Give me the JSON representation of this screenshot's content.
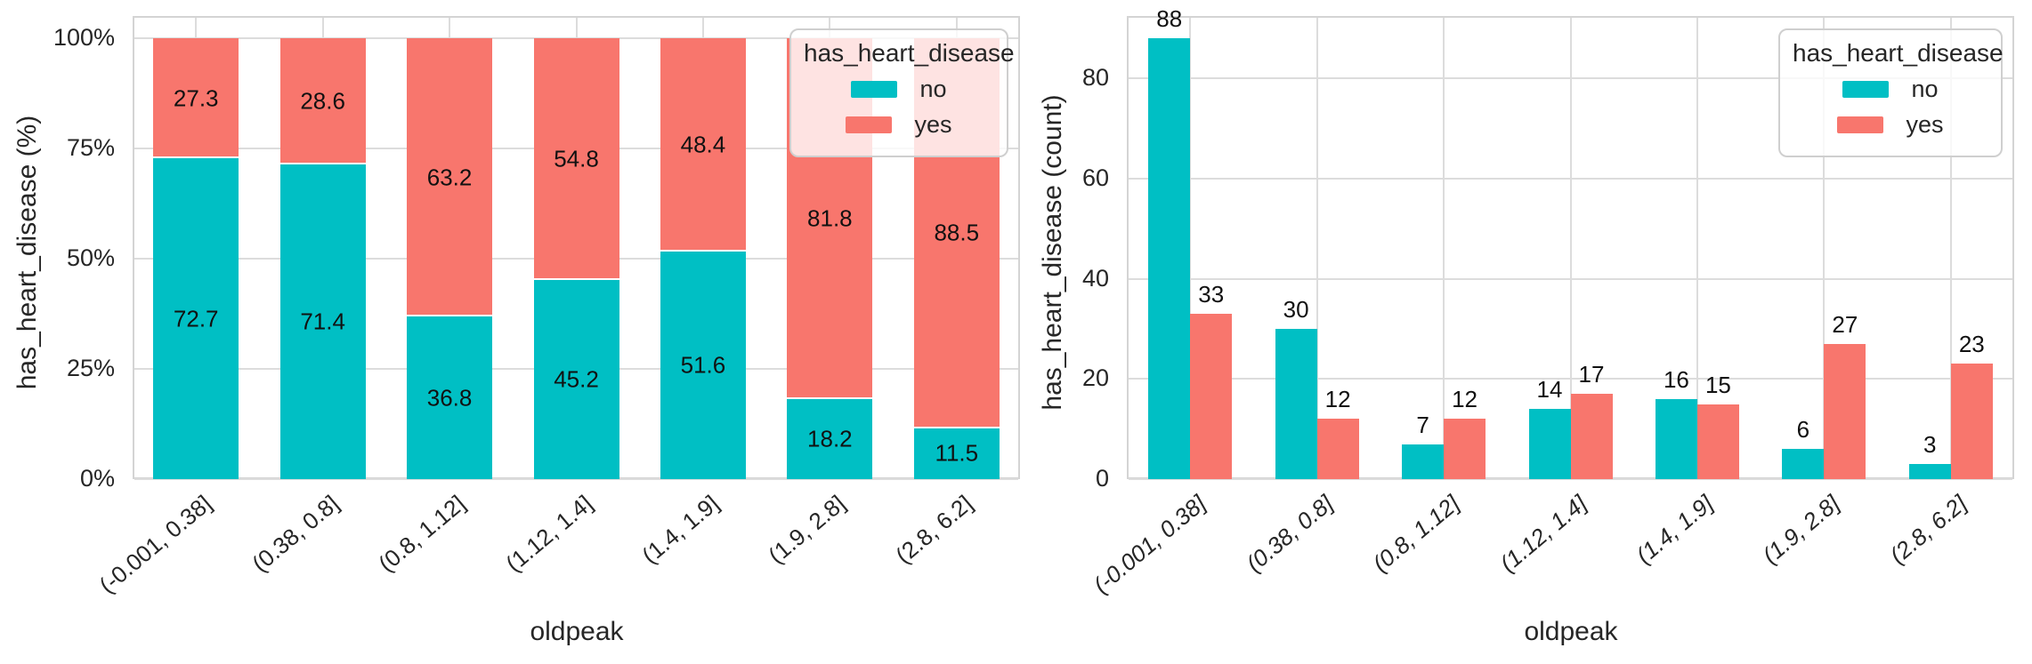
{
  "figure": {
    "background": "#ffffff",
    "text_color": "#262626",
    "grid_color": "#dcdcdc",
    "spine_color": "#d4d4d4",
    "series_colors": {
      "no": "#00BFC4",
      "yes": "#F8766D"
    }
  },
  "chart_data": [
    {
      "type": "bar",
      "variant": "stacked",
      "percent": true,
      "title": "",
      "xlabel": "oldpeak",
      "ylabel": "has_heart_disease (%)",
      "categories": [
        "(-0.001, 0.38]",
        "(0.38, 0.8]",
        "(0.8, 1.12]",
        "(1.12, 1.4]",
        "(1.4, 1.9]",
        "(1.9, 2.8]",
        "(2.8, 6.2]"
      ],
      "series": [
        {
          "name": "no",
          "color": "#00BFC4",
          "values": [
            72.7,
            71.4,
            36.8,
            45.2,
            51.6,
            18.2,
            11.5
          ]
        },
        {
          "name": "yes",
          "color": "#F8766D",
          "values": [
            27.3,
            28.6,
            63.2,
            54.8,
            48.4,
            81.8,
            88.5
          ]
        }
      ],
      "bar_labels": "inside",
      "ytick_values": [
        0,
        25,
        50,
        75,
        100
      ],
      "ytick_labels": [
        "0%",
        "25%",
        "50%",
        "75%",
        "100%"
      ],
      "ylim": [
        0,
        105
      ],
      "grid": true,
      "legend": {
        "title": "has_heart_disease",
        "labels": [
          "no",
          "yes"
        ],
        "position": "upper right"
      },
      "xtick_italic": false
    },
    {
      "type": "bar",
      "variant": "grouped",
      "percent": false,
      "title": "",
      "xlabel": "oldpeak",
      "ylabel": "has_heart_disease (count)",
      "categories": [
        "(-0.001, 0.38]",
        "(0.38, 0.8]",
        "(0.8, 1.12]",
        "(1.12, 1.4]",
        "(1.4, 1.9]",
        "(1.9, 2.8]",
        "(2.8, 6.2]"
      ],
      "series": [
        {
          "name": "no",
          "color": "#00BFC4",
          "values": [
            88,
            30,
            7,
            14,
            16,
            6,
            3
          ]
        },
        {
          "name": "yes",
          "color": "#F8766D",
          "values": [
            33,
            12,
            12,
            17,
            15,
            27,
            23
          ]
        }
      ],
      "bar_labels": "above",
      "ytick_values": [
        0,
        20,
        40,
        60,
        80
      ],
      "ytick_labels": [
        "0",
        "20",
        "40",
        "60",
        "80"
      ],
      "ylim": [
        0,
        92.5
      ],
      "grid": true,
      "legend": {
        "title": "has_heart_disease",
        "labels": [
          "no",
          "yes"
        ],
        "position": "upper right"
      },
      "xtick_italic": true
    }
  ]
}
